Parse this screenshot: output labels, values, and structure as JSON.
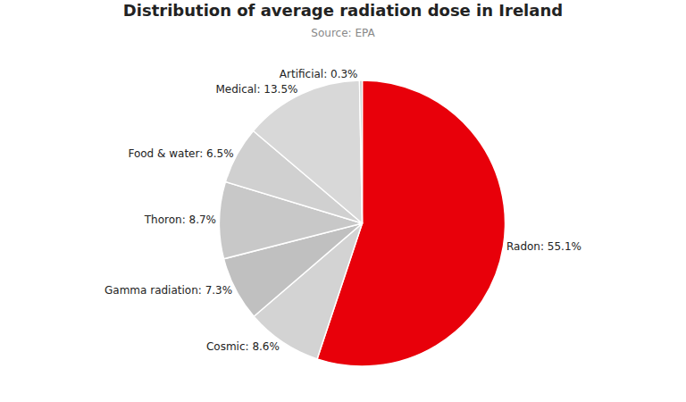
{
  "chart_data": {
    "type": "pie",
    "title": "Distribution of average radiation dose in Ireland",
    "subtitle": "Source: EPA",
    "categories": [
      "Radon",
      "Cosmic",
      "Gamma radiation",
      "Thoron",
      "Food & water",
      "Medical",
      "Artificial"
    ],
    "values": [
      55.1,
      8.6,
      7.3,
      8.7,
      6.5,
      13.5,
      0.3
    ],
    "value_labels": [
      "Radon: 55.1%",
      "Cosmic: 8.6%",
      "Gamma radiation: 7.3%",
      "Thoron: 8.7%",
      "Food & water: 6.5%",
      "Medical: 13.5%",
      "Artificial: 0.3%"
    ],
    "colors": [
      "#e8000a",
      "#d3d3d3",
      "#c0c0c0",
      "#c8c8c8",
      "#d0d0d0",
      "#d8d8d8",
      "#c4c4c4"
    ],
    "data_labels": true
  }
}
